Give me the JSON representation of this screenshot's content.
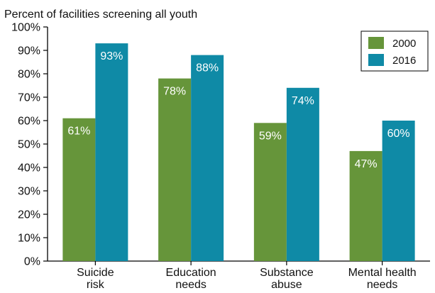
{
  "chart_data": {
    "type": "bar",
    "title": "Percent of facilities screening all youth",
    "categories": [
      [
        "Suicide",
        "risk"
      ],
      [
        "Education",
        "needs"
      ],
      [
        "Substance",
        "abuse"
      ],
      [
        "Mental health",
        "needs"
      ]
    ],
    "series": [
      {
        "name": "2000",
        "color": "#66953a",
        "values": [
          61,
          78,
          59,
          47
        ],
        "labels": [
          "61%",
          "78%",
          "59%",
          "47%"
        ]
      },
      {
        "name": "2016",
        "color": "#0f8aa6",
        "values": [
          93,
          88,
          74,
          60
        ],
        "labels": [
          "93%",
          "88%",
          "74%",
          "60%"
        ]
      }
    ],
    "ylim": [
      0,
      100
    ],
    "yticks": [
      "0%",
      "10%",
      "20%",
      "30%",
      "40%",
      "50%",
      "60%",
      "70%",
      "80%",
      "90%",
      "100%"
    ],
    "grid": false,
    "legend_position": "top-right"
  }
}
